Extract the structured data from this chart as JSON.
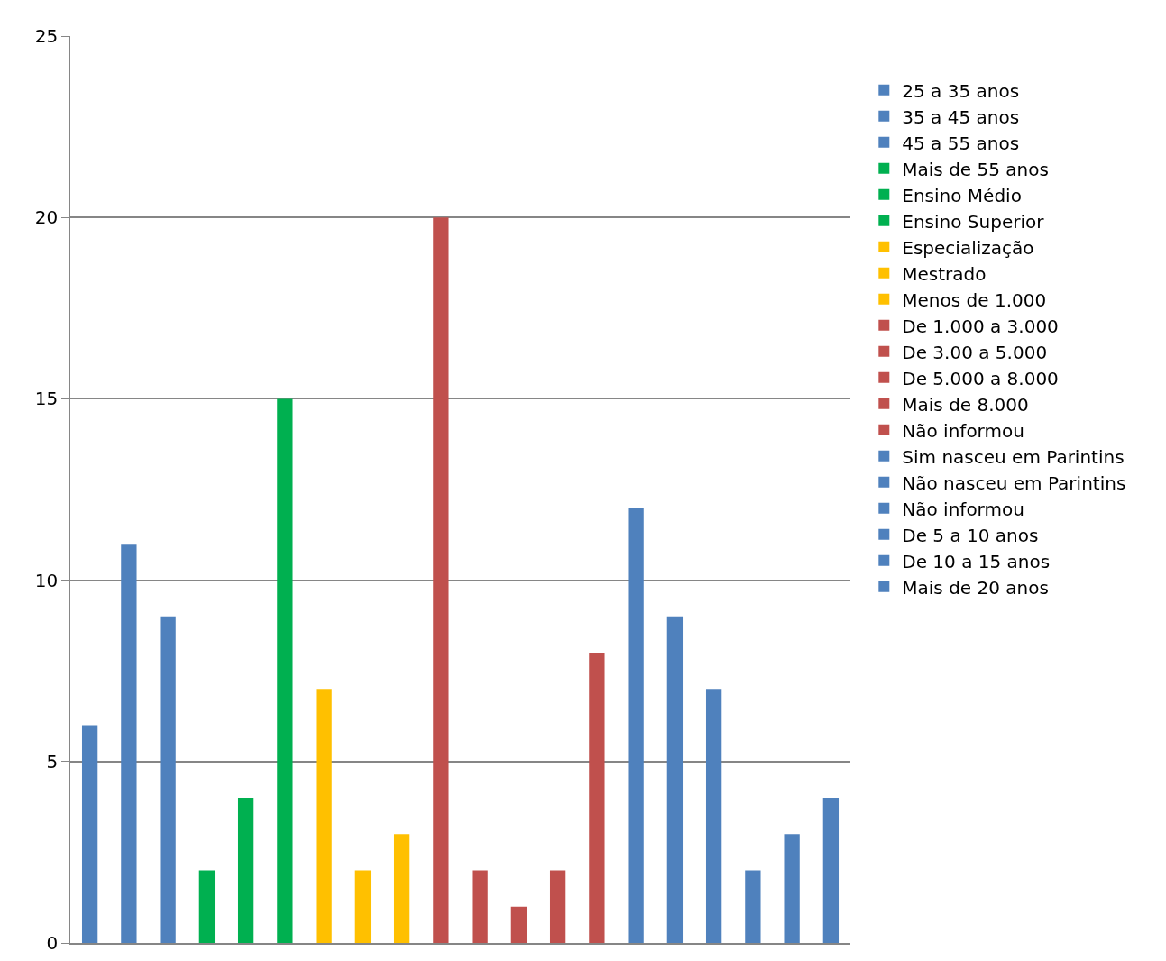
{
  "chart_data": {
    "type": "bar",
    "categories": [
      null,
      null,
      null,
      null,
      null,
      null,
      null,
      null,
      null,
      null,
      null,
      null,
      null,
      null,
      null,
      null,
      null,
      null,
      null,
      null
    ],
    "series": [
      {
        "name": "25 a 35 anos",
        "color": "#4f81bd",
        "values": [
          6,
          null,
          null,
          null,
          null,
          null,
          null,
          null,
          null,
          null,
          null,
          null,
          null,
          null,
          null,
          null,
          null,
          null,
          null,
          null
        ]
      },
      {
        "name": "35 a 45 anos",
        "color": "#4f81bd",
        "values": [
          null,
          11,
          null,
          null,
          null,
          null,
          null,
          null,
          null,
          null,
          null,
          null,
          null,
          null,
          null,
          null,
          null,
          null,
          null,
          null
        ]
      },
      {
        "name": "45 a 55 anos",
        "color": "#4f81bd",
        "values": [
          null,
          null,
          9,
          null,
          null,
          null,
          null,
          null,
          null,
          null,
          null,
          null,
          null,
          null,
          null,
          null,
          null,
          null,
          null,
          null
        ]
      },
      {
        "name": "Mais de 55 anos",
        "color": "#00b050",
        "values": [
          null,
          null,
          null,
          2,
          null,
          null,
          null,
          null,
          null,
          null,
          null,
          null,
          null,
          null,
          null,
          null,
          null,
          null,
          null,
          null
        ]
      },
      {
        "name": "Ensino Médio",
        "color": "#00b050",
        "values": [
          null,
          null,
          null,
          null,
          4,
          null,
          null,
          null,
          null,
          null,
          null,
          null,
          null,
          null,
          null,
          null,
          null,
          null,
          null,
          null
        ]
      },
      {
        "name": "Ensino Superior",
        "color": "#00b050",
        "values": [
          null,
          null,
          null,
          null,
          null,
          15,
          null,
          null,
          null,
          null,
          null,
          null,
          null,
          null,
          null,
          null,
          null,
          null,
          null,
          null
        ]
      },
      {
        "name": "Especialização",
        "color": "#ffc000",
        "values": [
          null,
          null,
          null,
          null,
          null,
          null,
          7,
          null,
          null,
          null,
          null,
          null,
          null,
          null,
          null,
          null,
          null,
          null,
          null,
          null
        ]
      },
      {
        "name": "Mestrado",
        "color": "#ffc000",
        "values": [
          null,
          null,
          null,
          null,
          null,
          null,
          null,
          2,
          null,
          null,
          null,
          null,
          null,
          null,
          null,
          null,
          null,
          null,
          null,
          null
        ]
      },
      {
        "name": "Menos de 1.000",
        "color": "#ffc000",
        "values": [
          null,
          null,
          null,
          null,
          null,
          null,
          null,
          null,
          3,
          null,
          null,
          null,
          null,
          null,
          null,
          null,
          null,
          null,
          null,
          null
        ]
      },
      {
        "name": "De 1.000 a 3.000",
        "color": "#c0504d",
        "values": [
          null,
          null,
          null,
          null,
          null,
          null,
          null,
          null,
          null,
          20,
          null,
          null,
          null,
          null,
          null,
          null,
          null,
          null,
          null,
          null
        ]
      },
      {
        "name": "De 3.00 a 5.000",
        "color": "#c0504d",
        "values": [
          null,
          null,
          null,
          null,
          null,
          null,
          null,
          null,
          null,
          null,
          2,
          null,
          null,
          null,
          null,
          null,
          null,
          null,
          null,
          null
        ]
      },
      {
        "name": "De 5.000 a 8.000",
        "color": "#c0504d",
        "values": [
          null,
          null,
          null,
          null,
          null,
          null,
          null,
          null,
          null,
          null,
          null,
          1,
          null,
          null,
          null,
          null,
          null,
          null,
          null,
          null
        ]
      },
      {
        "name": "Mais de 8.000",
        "color": "#c0504d",
        "values": [
          null,
          null,
          null,
          null,
          null,
          null,
          null,
          null,
          null,
          null,
          null,
          null,
          2,
          null,
          null,
          null,
          null,
          null,
          null,
          null
        ]
      },
      {
        "name": "Não informou",
        "color": "#c0504d",
        "values": [
          null,
          null,
          null,
          null,
          null,
          null,
          null,
          null,
          null,
          null,
          null,
          null,
          null,
          8,
          null,
          null,
          null,
          null,
          null,
          null
        ]
      },
      {
        "name": "Sim nasceu em Parintins",
        "color": "#4f81bd",
        "values": [
          null,
          null,
          null,
          null,
          null,
          null,
          null,
          null,
          null,
          null,
          null,
          null,
          null,
          null,
          12,
          null,
          null,
          null,
          null,
          null
        ]
      },
      {
        "name": "Não nasceu em Parintins",
        "color": "#4f81bd",
        "values": [
          null,
          null,
          null,
          null,
          null,
          null,
          null,
          null,
          null,
          null,
          null,
          null,
          null,
          null,
          null,
          9,
          null,
          null,
          null,
          null
        ]
      },
      {
        "name": "Não informou",
        "color": "#4f81bd",
        "values": [
          null,
          null,
          null,
          null,
          null,
          null,
          null,
          null,
          null,
          null,
          null,
          null,
          null,
          null,
          null,
          null,
          7,
          null,
          null,
          null
        ]
      },
      {
        "name": "De 5 a 10 anos",
        "color": "#4f81bd",
        "values": [
          null,
          null,
          null,
          null,
          null,
          null,
          null,
          null,
          null,
          null,
          null,
          null,
          null,
          null,
          null,
          null,
          null,
          2,
          null,
          null
        ]
      },
      {
        "name": "De 10 a 15 anos",
        "color": "#4f81bd",
        "values": [
          null,
          null,
          null,
          null,
          null,
          null,
          null,
          null,
          null,
          null,
          null,
          null,
          null,
          null,
          null,
          null,
          null,
          null,
          3,
          null
        ]
      },
      {
        "name": "Mais de 20 anos",
        "color": "#4f81bd",
        "values": [
          null,
          null,
          null,
          null,
          null,
          null,
          null,
          null,
          null,
          null,
          null,
          null,
          null,
          null,
          null,
          null,
          null,
          null,
          null,
          4
        ]
      }
    ],
    "ylim": [
      0,
      25
    ],
    "yticks": [
      0,
      5,
      10,
      15,
      20,
      25
    ],
    "grid": "y",
    "legend": "right",
    "tick_labels": "y"
  }
}
